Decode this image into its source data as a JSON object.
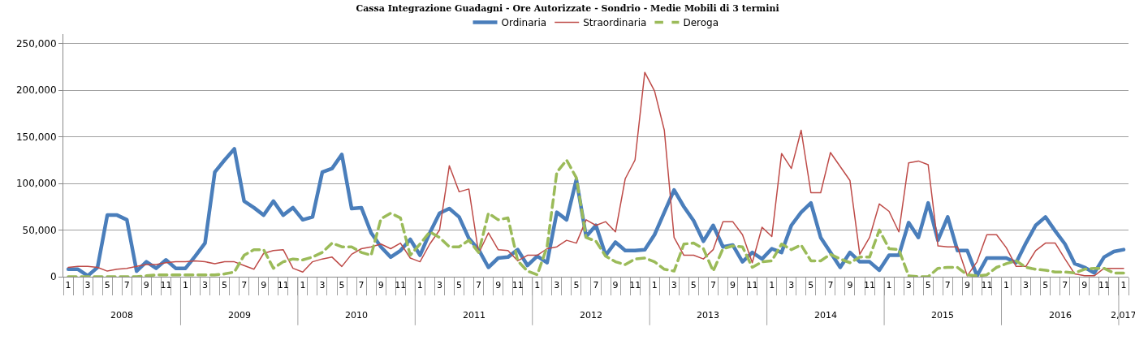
{
  "chart_data": {
    "type": "line",
    "title": "Cassa Integrazione Guadagni - Ore Autorizzate - Sondrio - Medie Mobili di 3 termini",
    "categories": [
      "1",
      null,
      "3",
      null,
      "5",
      null,
      "7",
      null,
      "9",
      null,
      "11",
      null,
      "1",
      null,
      "3",
      null,
      "5",
      null,
      "7",
      null,
      "9",
      null,
      "11",
      null,
      "1",
      null,
      "3",
      null,
      "5",
      null,
      "7",
      null,
      "9",
      null,
      "11",
      null,
      "1",
      null,
      "3",
      null,
      "5",
      null,
      "7",
      null,
      "9",
      null,
      "11",
      null,
      "1",
      null,
      "3",
      null,
      "5",
      null,
      "7",
      null,
      "9",
      null,
      "11",
      null,
      "1",
      null,
      "3",
      null,
      "5",
      null,
      "7",
      null,
      "9",
      null,
      "11",
      null,
      "1",
      null,
      "3",
      null,
      "5",
      null,
      "7",
      null,
      "9",
      null,
      "11",
      null,
      "1",
      null,
      "3",
      null,
      "5",
      null,
      "7",
      null,
      "9",
      null,
      "11",
      null,
      "1",
      null,
      "3",
      null,
      "5",
      null,
      "7",
      null,
      "9",
      null,
      "11",
      null,
      "1"
    ],
    "annotations": [
      "2008",
      "2009",
      "2010",
      "2011",
      "2012",
      "2013",
      "2014",
      "2015",
      "2016",
      "2,017"
    ],
    "series": [
      {
        "name": "Ordinaria",
        "color": "#4a7ebb",
        "line_style": "solid",
        "values": [
          8000,
          8000,
          1000,
          10000,
          66000,
          66000,
          61000,
          6000,
          16000,
          9000,
          18000,
          9000,
          9000,
          22000,
          36000,
          112000,
          125000,
          137000,
          81000,
          74000,
          66000,
          81000,
          66000,
          74000,
          61000,
          64000,
          112000,
          116000,
          131000,
          73000,
          74000,
          47000,
          32000,
          21000,
          28000,
          40000,
          23000,
          47000,
          68000,
          73000,
          64000,
          41000,
          29000,
          10000,
          20000,
          21000,
          29000,
          12000,
          22000,
          15000,
          69000,
          61000,
          104000,
          43000,
          55000,
          23000,
          37000,
          28000,
          28000,
          29000,
          45000,
          69000,
          93000,
          75000,
          60000,
          38000,
          55000,
          32000,
          34000,
          16000,
          26000,
          19000,
          30000,
          26000,
          55000,
          69000,
          79000,
          42000,
          26000,
          10000,
          26000,
          16000,
          16000,
          7000,
          23000,
          23000,
          58000,
          42000,
          79000,
          39000,
          64000,
          28000,
          28000,
          1000,
          20000,
          20000,
          20000,
          15000,
          36000,
          55000,
          64000,
          49000,
          35000,
          14000,
          10000,
          4000,
          21000,
          27000,
          29000
        ]
      },
      {
        "name": "Straordinaria",
        "color": "#be4b48",
        "line_style": "solid",
        "values": [
          10000,
          11000,
          11000,
          10000,
          6000,
          8000,
          9000,
          11000,
          13000,
          13000,
          15000,
          16000,
          16000,
          17000,
          16000,
          14000,
          16000,
          16000,
          12000,
          8000,
          25000,
          28000,
          29000,
          9000,
          5000,
          16000,
          19000,
          21000,
          11000,
          24000,
          30000,
          32000,
          35000,
          30000,
          36000,
          20000,
          16000,
          35000,
          50000,
          119000,
          91000,
          94000,
          25000,
          47000,
          29000,
          28000,
          17000,
          23000,
          23000,
          30000,
          32000,
          39000,
          36000,
          61000,
          55000,
          59000,
          48000,
          105000,
          125000,
          219000,
          199000,
          157000,
          42000,
          23000,
          23000,
          19000,
          29000,
          59000,
          59000,
          45000,
          15000,
          53000,
          43000,
          132000,
          116000,
          157000,
          90000,
          90000,
          133000,
          118000,
          103000,
          24000,
          42000,
          78000,
          70000,
          48000,
          122000,
          124000,
          120000,
          33000,
          32000,
          32000,
          1000,
          16000,
          45000,
          45000,
          31000,
          11000,
          11000,
          28000,
          36000,
          36000,
          19000,
          3000,
          1000,
          1000,
          9000,
          9000,
          9000
        ]
      },
      {
        "name": "Deroga",
        "color": "#9bbb59",
        "line_style": "dashed",
        "values": [
          0,
          0,
          0,
          0,
          0,
          0,
          0,
          0,
          1000,
          2000,
          2000,
          2000,
          2000,
          2000,
          2000,
          2000,
          3000,
          5000,
          23000,
          29000,
          29000,
          9000,
          16000,
          19000,
          18000,
          21000,
          26000,
          36000,
          32000,
          32000,
          26000,
          23000,
          62000,
          68000,
          63000,
          23000,
          35000,
          48000,
          42000,
          32000,
          32000,
          39000,
          26000,
          68000,
          61000,
          63000,
          17000,
          6000,
          2000,
          32000,
          112000,
          125000,
          106000,
          42000,
          38000,
          22000,
          16000,
          13000,
          19000,
          20000,
          16000,
          8000,
          6000,
          35000,
          36000,
          30000,
          6000,
          30000,
          33000,
          32000,
          10000,
          16000,
          17000,
          35000,
          29000,
          34000,
          17000,
          17000,
          24000,
          19000,
          15000,
          21000,
          21000,
          50000,
          30000,
          29000,
          1000,
          0,
          0,
          9000,
          10000,
          10000,
          2000,
          1000,
          2000,
          10000,
          14000,
          17000,
          10000,
          8000,
          7000,
          5000,
          5000,
          4000,
          8000,
          9000,
          9000,
          4000,
          4000
        ]
      }
    ],
    "ylim": [
      0,
      260000
    ],
    "yticks": [
      {
        "value": 0,
        "label": "0"
      },
      {
        "value": 50000,
        "label": "50,000"
      },
      {
        "value": 100000,
        "label": "100,000"
      },
      {
        "value": 150000,
        "label": "150,000"
      },
      {
        "value": 200000,
        "label": "200,000"
      },
      {
        "value": 250000,
        "label": "250,000"
      }
    ],
    "grid": "y",
    "legend": "top",
    "marker": "none"
  }
}
